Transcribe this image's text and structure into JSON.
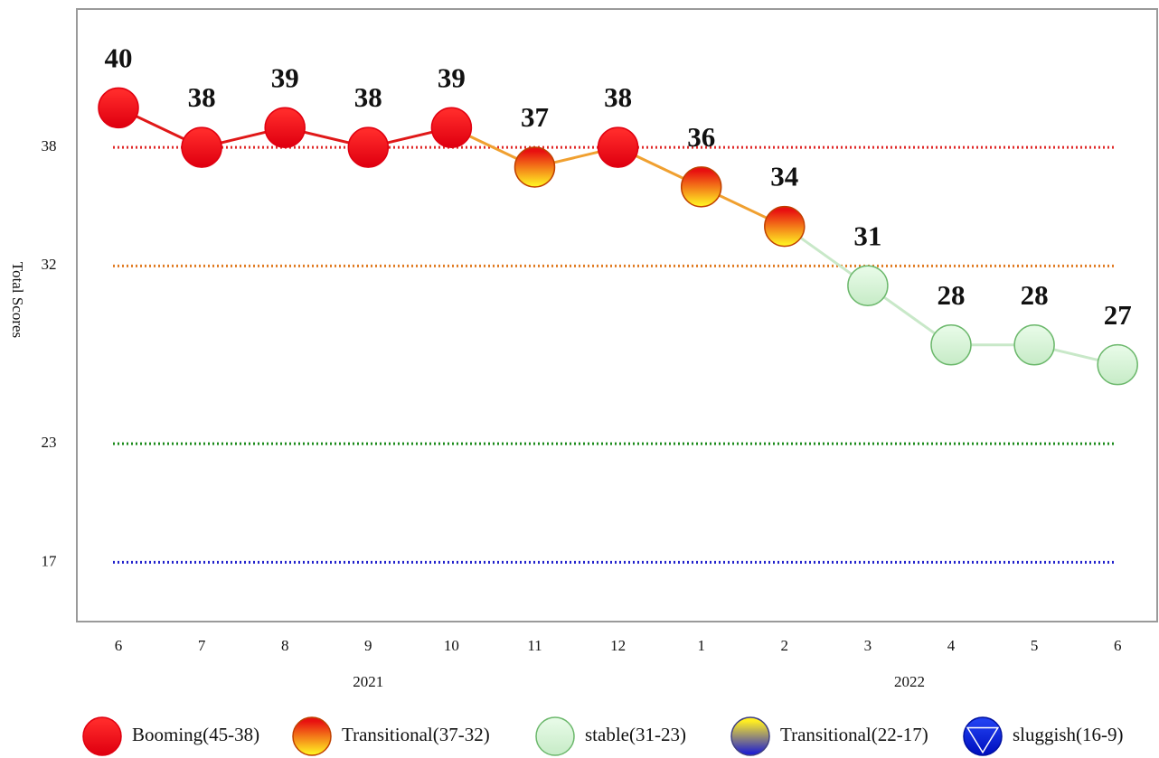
{
  "chart_data": {
    "type": "line",
    "y_label": "Total Scores",
    "categories": [
      "6",
      "7",
      "8",
      "9",
      "10",
      "11",
      "12",
      "1",
      "2",
      "3",
      "4",
      "5",
      "6"
    ],
    "years": [
      "2021",
      "2022"
    ],
    "values": [
      40,
      38,
      39,
      38,
      39,
      37,
      38,
      36,
      34,
      31,
      28,
      28,
      27
    ],
    "ylim": [
      14,
      45
    ],
    "yticks": [
      17,
      23,
      32,
      38
    ],
    "grid_colors": [
      "#2222cc",
      "#1a8a1a",
      "#e07a20",
      "#e02828"
    ],
    "legend_position": "bottom",
    "legend": [
      {
        "label": "Booming(45-38)",
        "range": [
          45,
          38
        ],
        "shape": "circle",
        "colors": [
          "#ff2a2a",
          "#e00010"
        ],
        "stroke": "#e00010",
        "line_color": "#e01818"
      },
      {
        "label": "Transitional(37-32)",
        "range": [
          37,
          32
        ],
        "shape": "circle",
        "colors": [
          "#e81010",
          "#ffee22"
        ],
        "stroke": "#c04000",
        "line_color": "#f0a030"
      },
      {
        "label": "stable(31-23)",
        "range": [
          31,
          23
        ],
        "shape": "circle",
        "colors": [
          "#e6fae6",
          "#c8ecc8"
        ],
        "stroke": "#6cb86c",
        "line_color": "#c8e8c8"
      },
      {
        "label": "Transitional(22-17)",
        "range": [
          22,
          17
        ],
        "shape": "circle",
        "colors": [
          "#ffee22",
          "#2020d0"
        ],
        "stroke": "#404080",
        "line_color": "#8080c0"
      },
      {
        "label": "sluggish(16-9)",
        "range": [
          16,
          9
        ],
        "shape": "triangle",
        "colors": [
          "#2040f0",
          "#0010c0"
        ],
        "stroke": "#0010a0",
        "line_color": "#2020c0"
      }
    ]
  }
}
